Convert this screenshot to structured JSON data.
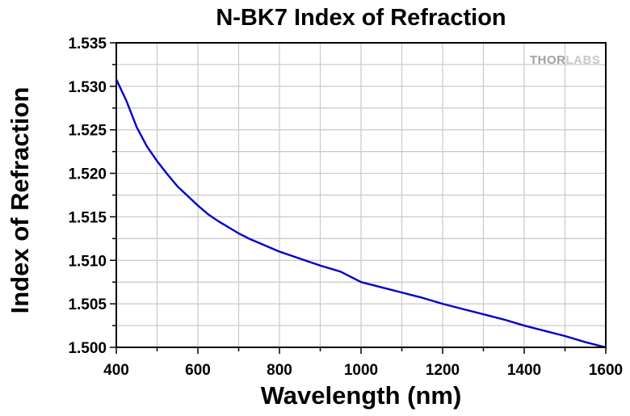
{
  "chart_data": {
    "type": "line",
    "title": "N-BK7 Index of Refraction",
    "xlabel": "Wavelength (nm)",
    "ylabel": "Index of Refraction",
    "xlim": [
      400,
      1600
    ],
    "ylim": [
      1.5,
      1.535
    ],
    "xticks": [
      "400",
      "600",
      "800",
      "1000",
      "1200",
      "1400",
      "1600"
    ],
    "yticks": [
      "1.500",
      "1.505",
      "1.510",
      "1.515",
      "1.520",
      "1.525",
      "1.530",
      "1.535"
    ],
    "grid": true,
    "series": [
      {
        "color": "#0000cc",
        "points": [
          [
            400,
            1.5308
          ],
          [
            425,
            1.5283
          ],
          [
            450,
            1.5253
          ],
          [
            475,
            1.5231
          ],
          [
            500,
            1.5214
          ],
          [
            525,
            1.5199
          ],
          [
            550,
            1.5185
          ],
          [
            575,
            1.5174
          ],
          [
            600,
            1.5163
          ],
          [
            625,
            1.5153
          ],
          [
            650,
            1.5145
          ],
          [
            675,
            1.5138
          ],
          [
            700,
            1.5131
          ],
          [
            725,
            1.5125
          ],
          [
            750,
            1.512
          ],
          [
            775,
            1.5115
          ],
          [
            800,
            1.511
          ],
          [
            850,
            1.5102
          ],
          [
            900,
            1.5094
          ],
          [
            950,
            1.5087
          ],
          [
            1000,
            1.5075
          ],
          [
            1050,
            1.5069
          ],
          [
            1100,
            1.5063
          ],
          [
            1150,
            1.5057
          ],
          [
            1200,
            1.505
          ],
          [
            1250,
            1.5044
          ],
          [
            1300,
            1.5038
          ],
          [
            1350,
            1.5032
          ],
          [
            1400,
            1.5025
          ],
          [
            1450,
            1.5019
          ],
          [
            1500,
            1.5013
          ],
          [
            1550,
            1.5006
          ],
          [
            1600,
            1.5
          ]
        ]
      }
    ]
  },
  "watermark": {
    "text_bold": "THOR",
    "text_light": "LABS",
    "color_bold": "#a0a0a0",
    "color_light": "#c8c8c8"
  }
}
